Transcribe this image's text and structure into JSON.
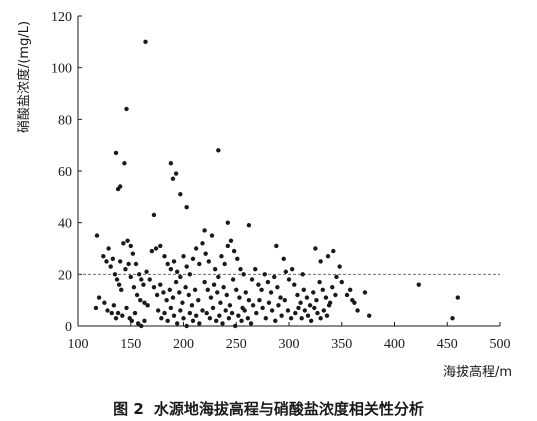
{
  "figure": {
    "caption_number": "图 2",
    "caption_text": "水源地海拔高程与硝酸盐浓度相关性分析"
  },
  "chart_data": {
    "type": "scatter",
    "xlabel": "海拔高程/m",
    "ylabel": "硝酸盐浓度/(mg/L)",
    "xlim": [
      100,
      500
    ],
    "ylim": [
      0,
      120
    ],
    "xticks": [
      100,
      150,
      200,
      250,
      300,
      350,
      400,
      450,
      500
    ],
    "yticks": [
      0,
      20,
      40,
      60,
      80,
      100,
      120
    ],
    "reference_line": {
      "y": 20,
      "style": "dashed"
    },
    "grid": false,
    "legend": "none",
    "point_color": "#1a1a1a",
    "points": [
      [
        164,
        110
      ],
      [
        146,
        84
      ],
      [
        136,
        67
      ],
      [
        144,
        63
      ],
      [
        140,
        54
      ],
      [
        138,
        53
      ],
      [
        188,
        63
      ],
      [
        193,
        59
      ],
      [
        190,
        57
      ],
      [
        233,
        68
      ],
      [
        197,
        51
      ],
      [
        203,
        46
      ],
      [
        172,
        43
      ],
      [
        262,
        39
      ],
      [
        242,
        40
      ],
      [
        220,
        37
      ],
      [
        118,
        35
      ],
      [
        129,
        30
      ],
      [
        133,
        26
      ],
      [
        140,
        25
      ],
      [
        143,
        32
      ],
      [
        147,
        33
      ],
      [
        150,
        31
      ],
      [
        152,
        28
      ],
      [
        155,
        24
      ],
      [
        158,
        20
      ],
      [
        160,
        18
      ],
      [
        162,
        16
      ],
      [
        165,
        21
      ],
      [
        168,
        18
      ],
      [
        124,
        27
      ],
      [
        127,
        25
      ],
      [
        131,
        23
      ],
      [
        135,
        20
      ],
      [
        137,
        18
      ],
      [
        139,
        16
      ],
      [
        141,
        14
      ],
      [
        145,
        22
      ],
      [
        148,
        24
      ],
      [
        150,
        19
      ],
      [
        153,
        15
      ],
      [
        156,
        12
      ],
      [
        159,
        10
      ],
      [
        163,
        9
      ],
      [
        166,
        8
      ],
      [
        120,
        11
      ],
      [
        117,
        7
      ],
      [
        125,
        9
      ],
      [
        128,
        6
      ],
      [
        132,
        5
      ],
      [
        134,
        8
      ],
      [
        136,
        3
      ],
      [
        138,
        5
      ],
      [
        142,
        4
      ],
      [
        146,
        7
      ],
      [
        149,
        3
      ],
      [
        151,
        2
      ],
      [
        154,
        5
      ],
      [
        157,
        1
      ],
      [
        160,
        0
      ],
      [
        163,
        2
      ],
      [
        170,
        29
      ],
      [
        174,
        30
      ],
      [
        178,
        31
      ],
      [
        182,
        27
      ],
      [
        185,
        24
      ],
      [
        188,
        22
      ],
      [
        191,
        25
      ],
      [
        194,
        21
      ],
      [
        197,
        19
      ],
      [
        200,
        27
      ],
      [
        203,
        23
      ],
      [
        206,
        20
      ],
      [
        209,
        26
      ],
      [
        212,
        30
      ],
      [
        215,
        24
      ],
      [
        172,
        15
      ],
      [
        175,
        12
      ],
      [
        178,
        16
      ],
      [
        181,
        13
      ],
      [
        184,
        10
      ],
      [
        187,
        14
      ],
      [
        190,
        11
      ],
      [
        193,
        17
      ],
      [
        196,
        13
      ],
      [
        199,
        9
      ],
      [
        202,
        15
      ],
      [
        205,
        12
      ],
      [
        208,
        8
      ],
      [
        211,
        14
      ],
      [
        214,
        10
      ],
      [
        176,
        6
      ],
      [
        179,
        3
      ],
      [
        182,
        5
      ],
      [
        185,
        2
      ],
      [
        188,
        7
      ],
      [
        191,
        4
      ],
      [
        194,
        1
      ],
      [
        197,
        6
      ],
      [
        200,
        3
      ],
      [
        203,
        0
      ],
      [
        206,
        5
      ],
      [
        209,
        2
      ],
      [
        212,
        4
      ],
      [
        215,
        1
      ],
      [
        218,
        6
      ],
      [
        218,
        32
      ],
      [
        221,
        28
      ],
      [
        224,
        25
      ],
      [
        227,
        35
      ],
      [
        230,
        22
      ],
      [
        233,
        19
      ],
      [
        236,
        27
      ],
      [
        239,
        24
      ],
      [
        242,
        31
      ],
      [
        245,
        33
      ],
      [
        248,
        29
      ],
      [
        251,
        26
      ],
      [
        254,
        22
      ],
      [
        257,
        20
      ],
      [
        220,
        17
      ],
      [
        223,
        14
      ],
      [
        226,
        11
      ],
      [
        229,
        16
      ],
      [
        232,
        13
      ],
      [
        235,
        9
      ],
      [
        238,
        15
      ],
      [
        241,
        12
      ],
      [
        244,
        8
      ],
      [
        247,
        18
      ],
      [
        250,
        14
      ],
      [
        253,
        11
      ],
      [
        256,
        7
      ],
      [
        259,
        13
      ],
      [
        262,
        10
      ],
      [
        222,
        5
      ],
      [
        225,
        3
      ],
      [
        228,
        7
      ],
      [
        231,
        2
      ],
      [
        234,
        4
      ],
      [
        237,
        1
      ],
      [
        240,
        6
      ],
      [
        243,
        3
      ],
      [
        246,
        5
      ],
      [
        249,
        0
      ],
      [
        252,
        4
      ],
      [
        255,
        2
      ],
      [
        258,
        6
      ],
      [
        261,
        3
      ],
      [
        264,
        1
      ],
      [
        265,
        18
      ],
      [
        268,
        22
      ],
      [
        271,
        16
      ],
      [
        274,
        14
      ],
      [
        277,
        20
      ],
      [
        280,
        17
      ],
      [
        283,
        13
      ],
      [
        286,
        19
      ],
      [
        289,
        15
      ],
      [
        292,
        11
      ],
      [
        295,
        26
      ],
      [
        297,
        21
      ],
      [
        300,
        18
      ],
      [
        288,
        31
      ],
      [
        266,
        8
      ],
      [
        269,
        5
      ],
      [
        272,
        10
      ],
      [
        275,
        7
      ],
      [
        278,
        3
      ],
      [
        281,
        9
      ],
      [
        284,
        6
      ],
      [
        287,
        2
      ],
      [
        290,
        8
      ],
      [
        293,
        4
      ],
      [
        296,
        10
      ],
      [
        299,
        6
      ],
      [
        302,
        3
      ],
      [
        305,
        16
      ],
      [
        308,
        12
      ],
      [
        311,
        9
      ],
      [
        314,
        14
      ],
      [
        317,
        11
      ],
      [
        320,
        8
      ],
      [
        323,
        13
      ],
      [
        326,
        10
      ],
      [
        329,
        17
      ],
      [
        332,
        14
      ],
      [
        335,
        11
      ],
      [
        338,
        8
      ],
      [
        341,
        15
      ],
      [
        344,
        12
      ],
      [
        306,
        5
      ],
      [
        309,
        7
      ],
      [
        312,
        3
      ],
      [
        315,
        6
      ],
      [
        318,
        4
      ],
      [
        321,
        2
      ],
      [
        324,
        7
      ],
      [
        327,
        5
      ],
      [
        330,
        3
      ],
      [
        333,
        6
      ],
      [
        336,
        4
      ],
      [
        339,
        9
      ],
      [
        303,
        22
      ],
      [
        313,
        20
      ],
      [
        325,
        30
      ],
      [
        330,
        25
      ],
      [
        342,
        29
      ],
      [
        348,
        23
      ],
      [
        337,
        27
      ],
      [
        345,
        19
      ],
      [
        350,
        17
      ],
      [
        355,
        12
      ],
      [
        358,
        14
      ],
      [
        362,
        9
      ],
      [
        365,
        6
      ],
      [
        372,
        13
      ],
      [
        376,
        4
      ],
      [
        360,
        10
      ],
      [
        423,
        16
      ],
      [
        460,
        11
      ],
      [
        455,
        3
      ]
    ]
  }
}
